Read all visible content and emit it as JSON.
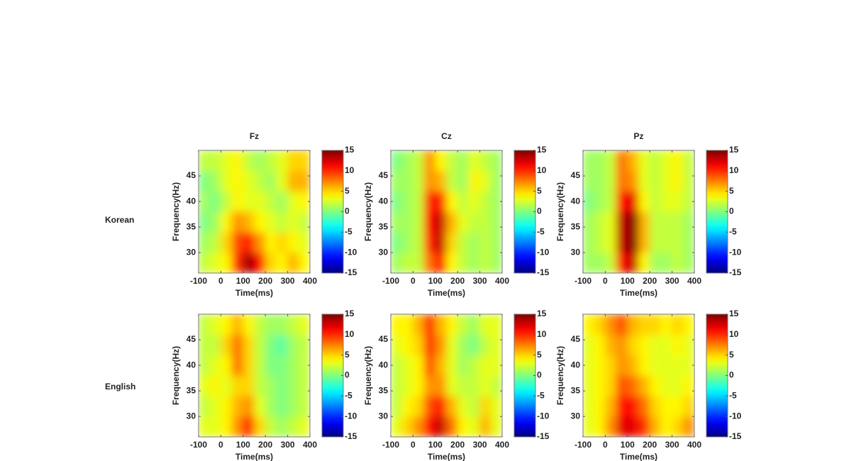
{
  "row_labels": [
    "Korean",
    "English"
  ],
  "chart_data": [
    {
      "type": "heatmap",
      "title": "Fz",
      "xlabel": "Time(ms)",
      "ylabel": "Frequency(Hz)",
      "colormap": "jet",
      "x": [
        -75,
        -25,
        25,
        75,
        125,
        175,
        225,
        275,
        325,
        375
      ],
      "y": [
        28,
        32,
        36,
        40,
        44,
        48
      ],
      "xlim": [
        -100,
        400
      ],
      "xticks": [
        -100,
        0,
        100,
        200,
        300,
        400
      ],
      "ylim": [
        26,
        50
      ],
      "yticks": [
        30,
        35,
        40,
        45
      ],
      "clim": [
        -15,
        15
      ],
      "cticks": [
        -15,
        -10,
        -5,
        0,
        5,
        10,
        15
      ],
      "z": [
        [
          2,
          3,
          4,
          10,
          14,
          11,
          5,
          4,
          6,
          4
        ],
        [
          1,
          2,
          5,
          9,
          11,
          7,
          4,
          5,
          4,
          3
        ],
        [
          0,
          1,
          4,
          7,
          6,
          4,
          3,
          2,
          3,
          2
        ],
        [
          1,
          0,
          2,
          4,
          3,
          3,
          2,
          1,
          3,
          4
        ],
        [
          0,
          1,
          3,
          4,
          3,
          2,
          1,
          3,
          6,
          6
        ],
        [
          2,
          2,
          3,
          4,
          2,
          1,
          2,
          3,
          5,
          5
        ]
      ]
    },
    {
      "type": "heatmap",
      "title": "Cz",
      "xlabel": "Time(ms)",
      "ylabel": "Frequency(Hz)",
      "colormap": "jet",
      "x": [
        -75,
        -25,
        25,
        75,
        125,
        175,
        225,
        275,
        325,
        375
      ],
      "y": [
        28,
        32,
        36,
        40,
        44,
        48
      ],
      "xlim": [
        -100,
        400
      ],
      "xticks": [
        -100,
        0,
        100,
        200,
        300,
        400
      ],
      "ylim": [
        26,
        50
      ],
      "yticks": [
        30,
        35,
        40,
        45
      ],
      "clim": [
        -15,
        15
      ],
      "cticks": [
        -15,
        -10,
        -5,
        0,
        5,
        10,
        15
      ],
      "z": [
        [
          1,
          2,
          2,
          8,
          11,
          4,
          2,
          1,
          2,
          1
        ],
        [
          0,
          1,
          2,
          10,
          13,
          5,
          2,
          1,
          2,
          1
        ],
        [
          1,
          1,
          2,
          11,
          13,
          6,
          3,
          2,
          2,
          1
        ],
        [
          0,
          1,
          2,
          10,
          11,
          4,
          2,
          3,
          2,
          1
        ],
        [
          1,
          1,
          2,
          7,
          6,
          2,
          1,
          4,
          3,
          1
        ],
        [
          0,
          1,
          2,
          7,
          4,
          2,
          1,
          3,
          2,
          1
        ]
      ]
    },
    {
      "type": "heatmap",
      "title": "Pz",
      "xlabel": "Time(ms)",
      "ylabel": "Frequency(Hz)",
      "colormap": "jet",
      "x": [
        -75,
        -25,
        25,
        75,
        125,
        175,
        225,
        275,
        325,
        375
      ],
      "y": [
        28,
        32,
        36,
        40,
        44,
        48
      ],
      "xlim": [
        -100,
        400
      ],
      "xticks": [
        -100,
        0,
        100,
        200,
        300,
        400
      ],
      "ylim": [
        26,
        50
      ],
      "yticks": [
        30,
        35,
        40,
        45
      ],
      "clim": [
        -15,
        15
      ],
      "cticks": [
        -15,
        -10,
        -5,
        0,
        5,
        10,
        15
      ],
      "z": [
        [
          1,
          1,
          2,
          11,
          13,
          4,
          1,
          1,
          2,
          1
        ],
        [
          1,
          2,
          3,
          13,
          15,
          6,
          2,
          2,
          2,
          1
        ],
        [
          1,
          2,
          3,
          13,
          15,
          6,
          2,
          2,
          2,
          1
        ],
        [
          0,
          1,
          2,
          11,
          12,
          4,
          2,
          3,
          3,
          2
        ],
        [
          1,
          1,
          2,
          8,
          7,
          3,
          2,
          3,
          4,
          2
        ],
        [
          1,
          1,
          2,
          8,
          6,
          3,
          2,
          3,
          4,
          2
        ]
      ]
    },
    {
      "type": "heatmap",
      "xlabel": "Time(ms)",
      "ylabel": "Frequency(Hz)",
      "colormap": "jet",
      "x": [
        -75,
        -25,
        25,
        75,
        125,
        175,
        225,
        275,
        325,
        375
      ],
      "y": [
        28,
        32,
        36,
        40,
        44,
        48
      ],
      "xlim": [
        -100,
        400
      ],
      "xticks": [
        -100,
        0,
        100,
        200,
        300,
        400
      ],
      "ylim": [
        26,
        50
      ],
      "yticks": [
        30,
        35,
        40,
        45
      ],
      "clim": [
        -15,
        15
      ],
      "cticks": [
        -15,
        -10,
        -5,
        0,
        5,
        10,
        15
      ],
      "z": [
        [
          3,
          3,
          4,
          7,
          11,
          5,
          2,
          1,
          2,
          3
        ],
        [
          2,
          3,
          4,
          6,
          7,
          3,
          1,
          0,
          1,
          2
        ],
        [
          3,
          4,
          3,
          5,
          5,
          2,
          1,
          0,
          1,
          2
        ],
        [
          2,
          3,
          4,
          8,
          5,
          2,
          0,
          0,
          1,
          2
        ],
        [
          2,
          2,
          5,
          8,
          5,
          2,
          0,
          -1,
          1,
          2
        ],
        [
          2,
          3,
          4,
          6,
          4,
          2,
          1,
          1,
          2,
          3
        ]
      ]
    },
    {
      "type": "heatmap",
      "xlabel": "Time(ms)",
      "ylabel": "Frequency(Hz)",
      "colormap": "jet",
      "x": [
        -75,
        -25,
        25,
        75,
        125,
        175,
        225,
        275,
        325,
        375
      ],
      "y": [
        28,
        32,
        36,
        40,
        44,
        48
      ],
      "xlim": [
        -100,
        400
      ],
      "xticks": [
        -100,
        0,
        100,
        200,
        300,
        400
      ],
      "ylim": [
        26,
        50
      ],
      "yticks": [
        30,
        35,
        40,
        45
      ],
      "clim": [
        -15,
        15
      ],
      "cticks": [
        -15,
        -10,
        -5,
        0,
        5,
        10,
        15
      ],
      "z": [
        [
          3,
          5,
          7,
          11,
          13,
          8,
          4,
          3,
          6,
          3
        ],
        [
          2,
          4,
          5,
          9,
          11,
          6,
          3,
          2,
          5,
          3
        ],
        [
          2,
          3,
          4,
          7,
          7,
          3,
          2,
          2,
          3,
          2
        ],
        [
          2,
          3,
          4,
          9,
          6,
          3,
          1,
          2,
          3,
          3
        ],
        [
          3,
          4,
          5,
          10,
          7,
          3,
          1,
          0,
          2,
          3
        ],
        [
          4,
          4,
          6,
          10,
          6,
          4,
          2,
          1,
          3,
          3
        ]
      ]
    },
    {
      "type": "heatmap",
      "xlabel": "Time(ms)",
      "ylabel": "Frequency(Hz)",
      "colormap": "jet",
      "x": [
        -75,
        -25,
        25,
        75,
        125,
        175,
        225,
        275,
        325,
        375
      ],
      "y": [
        28,
        32,
        36,
        40,
        44,
        48
      ],
      "xlim": [
        -100,
        400
      ],
      "xticks": [
        -100,
        0,
        100,
        200,
        300,
        400
      ],
      "ylim": [
        26,
        50
      ],
      "yticks": [
        30,
        35,
        40,
        45
      ],
      "clim": [
        -15,
        15
      ],
      "cticks": [
        -15,
        -10,
        -5,
        0,
        5,
        10,
        15
      ],
      "z": [
        [
          3,
          4,
          7,
          12,
          12,
          10,
          6,
          4,
          5,
          7
        ],
        [
          3,
          4,
          6,
          11,
          11,
          8,
          5,
          4,
          4,
          5
        ],
        [
          3,
          4,
          5,
          9,
          8,
          6,
          4,
          3,
          3,
          4
        ],
        [
          3,
          4,
          5,
          7,
          6,
          4,
          3,
          3,
          3,
          3
        ],
        [
          3,
          4,
          6,
          7,
          5,
          4,
          3,
          3,
          4,
          3
        ],
        [
          4,
          5,
          7,
          9,
          6,
          5,
          5,
          4,
          5,
          4
        ]
      ]
    }
  ]
}
